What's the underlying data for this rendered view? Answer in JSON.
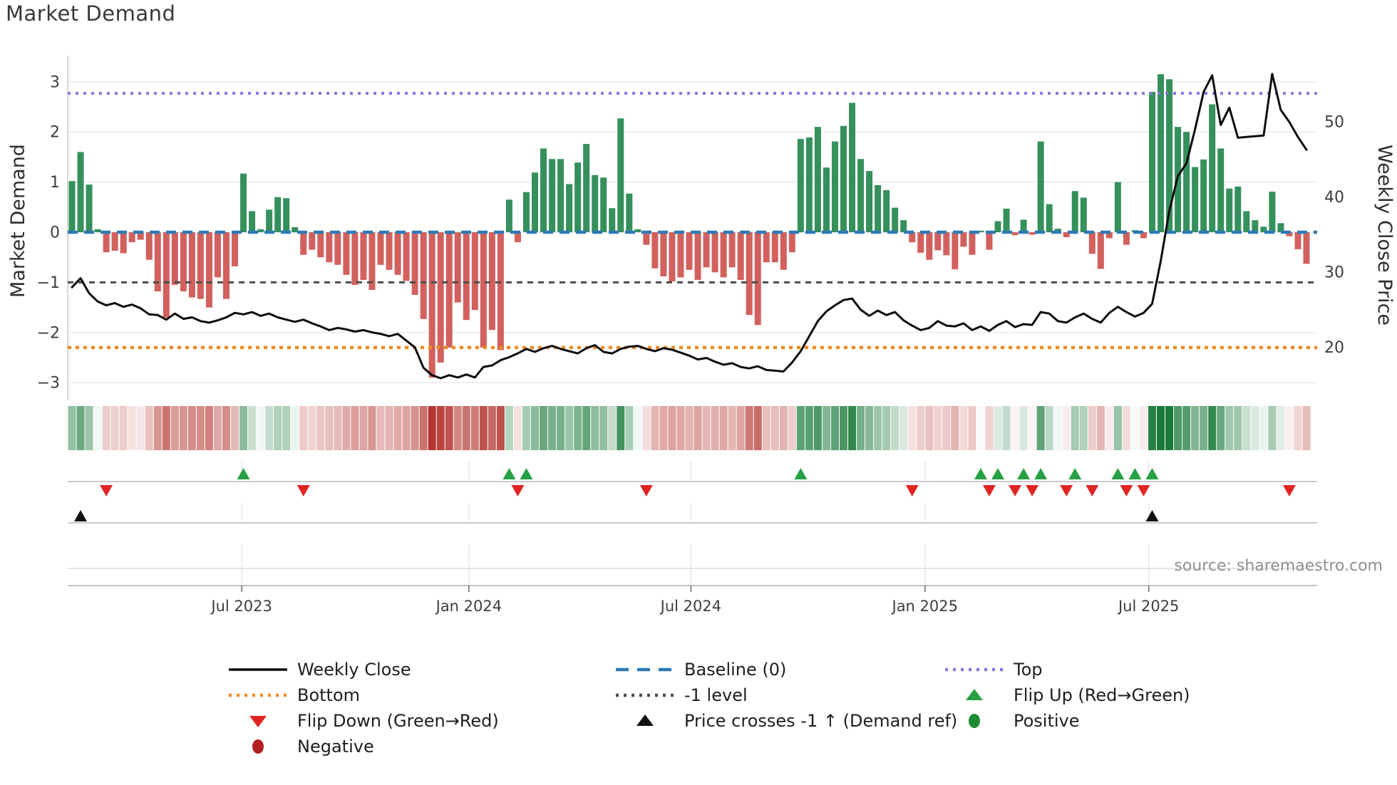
{
  "title": "Market Demand",
  "source": "source: sharemaestro.com",
  "colors": {
    "positive_bar": "#35905c",
    "negative_bar": "#d2605d",
    "baseline": "#2e79b5",
    "top_line": "#8878dd",
    "minus_one_line": "#4d4d4d",
    "bottom_line": "#ee8b20",
    "price_line": "#0d0d0d",
    "flip_up": "#27a045",
    "flip_down": "#e02424",
    "price_cross": "#111111",
    "positive_dot": "#1f8b33",
    "negative_dot": "#b22222",
    "heat_green": "#1a7a3a",
    "heat_red": "#b03029",
    "grid": "#eaeaf0",
    "subgrid": "#e6e6ec",
    "separator": "#c4c4c8",
    "spine": "#c8c8c8",
    "tick_text": "#3d3d3d",
    "axis_title_text": "#2e2e2e",
    "source_text": "#8f8f8f"
  },
  "chart_data": {
    "type": "bar+line",
    "title": "Market Demand",
    "x_axis": {
      "n_points": 145,
      "unit": "weekly",
      "ticks": [
        {
          "label": "Jul 2023",
          "index": 19.8
        },
        {
          "label": "Jan 2024",
          "index": 46.3
        },
        {
          "label": "Jul 2024",
          "index": 72.2
        },
        {
          "label": "Jan 2025",
          "index": 99.5
        },
        {
          "label": "Jul 2025",
          "index": 125.6
        }
      ]
    },
    "demand_axis": {
      "title": "Market Demand",
      "ticks": [
        3,
        2,
        1,
        0,
        -1,
        -2,
        -3
      ],
      "ylim": [
        -3.45,
        3.52
      ]
    },
    "price_axis": {
      "title": "Weekly Close Price",
      "ticks": [
        50,
        40,
        30,
        20
      ]
    },
    "reference_lines": {
      "top": 2.77,
      "baseline": 0,
      "minus_one": -1,
      "bottom": -2.3
    },
    "series": [
      {
        "name": "Market Demand",
        "type": "bar",
        "axis": "demand",
        "values": [
          1.02,
          1.6,
          0.95,
          0.06,
          -0.4,
          -0.37,
          -0.42,
          -0.2,
          -0.15,
          -0.55,
          -1.18,
          -1.7,
          -1.05,
          -1.18,
          -1.3,
          -1.33,
          -1.5,
          -0.9,
          -1.33,
          -0.68,
          1.17,
          0.42,
          0.06,
          0.45,
          0.7,
          0.68,
          0.1,
          -0.45,
          -0.35,
          -0.5,
          -0.6,
          -0.65,
          -0.85,
          -1.05,
          -0.95,
          -1.15,
          -0.65,
          -0.75,
          -0.85,
          -0.97,
          -1.25,
          -1.73,
          -2.9,
          -2.6,
          -2.3,
          -1.4,
          -1.75,
          -1.55,
          -2.3,
          -1.95,
          -2.35,
          0.65,
          -0.2,
          0.8,
          1.19,
          1.67,
          1.46,
          1.46,
          0.96,
          1.39,
          1.76,
          1.14,
          1.09,
          0.48,
          2.27,
          0.77,
          0.06,
          -0.25,
          -0.72,
          -0.88,
          -0.98,
          -0.9,
          -0.75,
          -0.95,
          -0.7,
          -0.8,
          -0.9,
          -0.7,
          -0.95,
          -1.65,
          -1.85,
          -0.6,
          -0.6,
          -0.75,
          -0.4,
          1.86,
          1.89,
          2.1,
          1.29,
          1.81,
          2.12,
          2.58,
          1.46,
          1.22,
          0.94,
          0.84,
          0.49,
          0.24,
          -0.2,
          -0.41,
          -0.55,
          -0.36,
          -0.46,
          -0.74,
          -0.29,
          -0.45,
          0.03,
          -0.35,
          0.22,
          0.47,
          -0.06,
          0.25,
          -0.05,
          1.81,
          0.56,
          0.07,
          -0.1,
          0.82,
          0.69,
          -0.43,
          -0.73,
          -0.12,
          1.0,
          -0.25,
          0.04,
          -0.12,
          2.8,
          3.15,
          3.05,
          2.1,
          2.0,
          1.3,
          1.45,
          2.55,
          1.67,
          0.87,
          0.91,
          0.42,
          0.24,
          0.11,
          0.81,
          0.18,
          -0.08,
          -0.34,
          -0.63
        ]
      },
      {
        "name": "Weekly Close",
        "type": "line",
        "axis": "price",
        "values": [
          28.0,
          29.2,
          27.2,
          26.1,
          25.6,
          25.9,
          25.4,
          25.7,
          25.2,
          24.4,
          24.3,
          23.7,
          24.5,
          23.8,
          24.0,
          23.5,
          23.3,
          23.6,
          24.0,
          24.6,
          24.4,
          24.7,
          24.2,
          24.5,
          24.0,
          23.7,
          23.4,
          23.7,
          23.2,
          22.8,
          22.3,
          22.6,
          22.4,
          22.1,
          22.3,
          22.0,
          21.8,
          21.5,
          21.8,
          20.9,
          20.0,
          17.3,
          16.3,
          15.9,
          16.3,
          16.0,
          16.4,
          16.0,
          17.4,
          17.6,
          18.3,
          18.7,
          19.2,
          19.8,
          19.4,
          19.9,
          20.2,
          19.8,
          19.5,
          19.2,
          19.9,
          20.3,
          19.4,
          19.2,
          19.8,
          20.1,
          20.2,
          19.8,
          19.5,
          19.9,
          19.7,
          19.3,
          18.9,
          18.4,
          18.6,
          18.1,
          17.7,
          17.9,
          17.4,
          17.2,
          17.5,
          17.0,
          16.9,
          16.8,
          18.0,
          19.5,
          21.5,
          23.5,
          24.8,
          25.6,
          26.3,
          26.5,
          25.0,
          24.2,
          24.9,
          24.3,
          24.7,
          23.6,
          22.9,
          22.3,
          22.6,
          23.5,
          22.9,
          22.8,
          23.2,
          22.3,
          22.8,
          22.2,
          23.0,
          23.5,
          22.7,
          23.1,
          23.0,
          24.7,
          24.5,
          23.5,
          23.3,
          24.0,
          24.5,
          23.8,
          23.3,
          24.6,
          25.4,
          24.7,
          24.1,
          24.6,
          25.8,
          31.5,
          38.2,
          42.8,
          44.5,
          49.0,
          54.0,
          56.2,
          49.6,
          51.9,
          47.9,
          48.0,
          48.1,
          48.2,
          56.4,
          51.6,
          50.0,
          48.0,
          46.3
        ]
      }
    ],
    "markers": {
      "flip_up_indices": [
        20,
        51,
        53,
        85,
        106,
        108,
        111,
        113,
        117,
        122,
        124,
        126
      ],
      "flip_down_indices": [
        4,
        27,
        52,
        67,
        98,
        107,
        110,
        112,
        116,
        119,
        123,
        125,
        142
      ],
      "price_cross_indices": [
        1,
        126
      ]
    },
    "heatmap": {
      "source_series": "Market Demand",
      "note": "sign/intensity color strip"
    }
  },
  "legend": {
    "columns": [
      [
        {
          "marker": "line-solid",
          "color_key": "price_line",
          "label": "Weekly Close"
        },
        {
          "marker": "line-dotted",
          "color_key": "bottom_line",
          "label": "Bottom"
        },
        {
          "marker": "triangle-down",
          "color_key": "flip_down",
          "label": "Flip Down (Green→Red)"
        },
        {
          "marker": "circle",
          "color_key": "negative_dot",
          "label": "Negative"
        }
      ],
      [
        {
          "marker": "line-dashed",
          "color_key": "baseline",
          "label": "Baseline (0)"
        },
        {
          "marker": "line-dotted",
          "color_key": "minus_one_line",
          "label": "-1 level"
        },
        {
          "marker": "triangle-up",
          "color_key": "price_cross",
          "label": "Price crosses -1 ↑ (Demand ref)"
        }
      ],
      [
        {
          "marker": "line-dotted",
          "color_key": "top_line",
          "label": "Top"
        },
        {
          "marker": "triangle-up",
          "color_key": "flip_up",
          "label": "Flip Up (Red→Green)"
        },
        {
          "marker": "circle",
          "color_key": "positive_dot",
          "label": "Positive"
        }
      ]
    ]
  }
}
